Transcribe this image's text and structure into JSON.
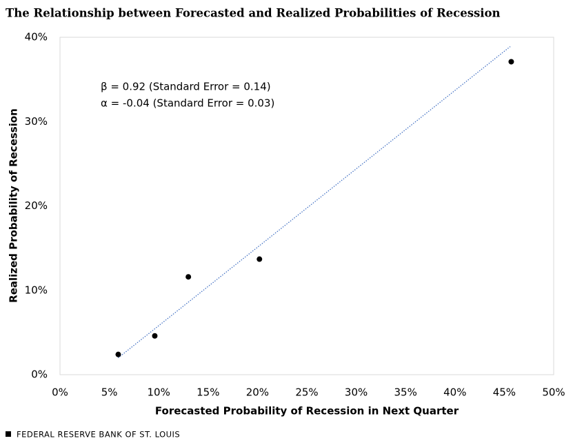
{
  "chart_data": {
    "type": "scatter",
    "title": "The Relationship between Forecasted and Realized Probabilities of Recession",
    "x_label": "Forecasted Probability  of Recession in Next Quarter",
    "y_label": "Realized Probability  of Recession",
    "series": [
      {
        "name": "Points",
        "color": "#000000",
        "x": [
          5.9,
          9.6,
          13.0,
          20.2,
          45.7
        ],
        "values": [
          2.4,
          4.6,
          11.6,
          13.7,
          37.1
        ]
      }
    ],
    "trendline": {
      "color": "#4472c4",
      "x": [
        5.9,
        45.6
      ],
      "values": [
        2.0,
        38.9
      ]
    },
    "annotations": [
      "β =  0.92 (Standard Error = 0.14)",
      "α = -0.04 (Standard Error = 0.03)"
    ],
    "xlim": [
      0,
      50
    ],
    "xticks": [
      {
        "value": 0,
        "label": "0%"
      },
      {
        "value": 5,
        "label": "5%"
      },
      {
        "value": 10,
        "label": "10%"
      },
      {
        "value": 15,
        "label": "15%"
      },
      {
        "value": 20,
        "label": "20%"
      },
      {
        "value": 25,
        "label": "25%"
      },
      {
        "value": 30,
        "label": "30%"
      },
      {
        "value": 35,
        "label": "35%"
      },
      {
        "value": 40,
        "label": "40%"
      },
      {
        "value": 45,
        "label": "45%"
      },
      {
        "value": 50,
        "label": "50%"
      }
    ],
    "ylim": [
      0,
      40
    ],
    "yticks": [
      {
        "value": 0,
        "label": "0%"
      },
      {
        "value": 10,
        "label": "10%"
      },
      {
        "value": 20,
        "label": "20%"
      },
      {
        "value": 30,
        "label": "30%"
      },
      {
        "value": 40,
        "label": "40%"
      }
    ],
    "source": "FEDERAL RESERVE BANK OF ST. LOUIS"
  }
}
